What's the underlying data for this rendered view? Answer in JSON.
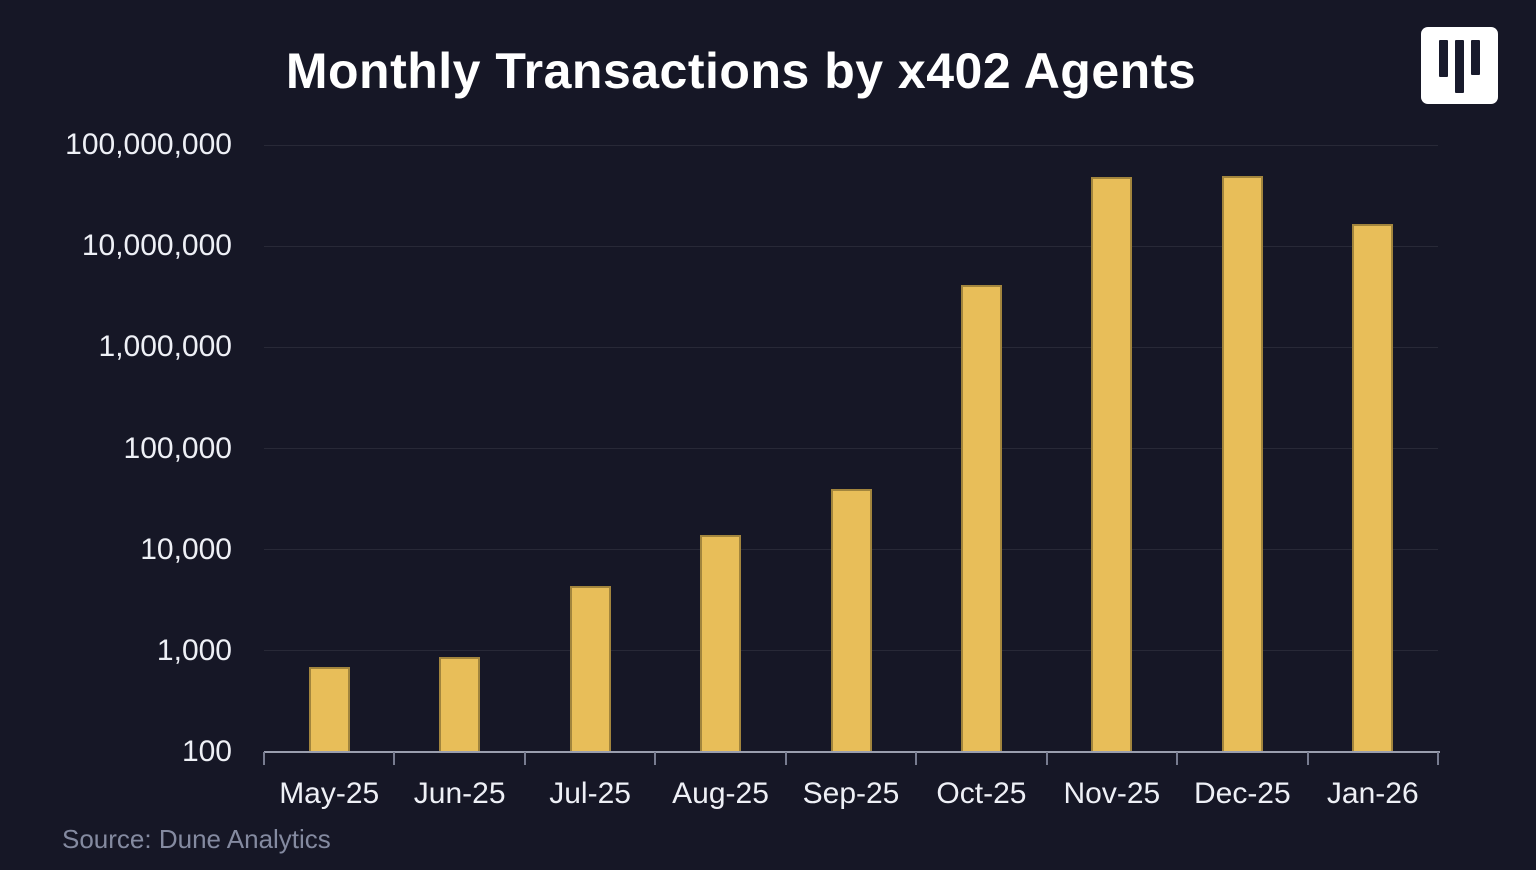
{
  "title": "Monthly Transactions by x402 Agents",
  "source": "Source: Dune Analytics",
  "logo_icon": "three-vertical-bars-logo",
  "colors": {
    "background": "#161726",
    "bar": "#e8be59",
    "title_text": "#ffffff",
    "axis_text": "#eef0f6",
    "source_text": "#848aa0",
    "axis_line": "#9a9eae",
    "gridline": "rgba(255,255,255,0.08)",
    "logo_background": "#ffffff",
    "logo_bars": "#181a2c"
  },
  "chart_data": {
    "type": "bar",
    "title": "Monthly Transactions by x402 Agents",
    "xlabel": "",
    "ylabel": "",
    "y_scale": "log",
    "ylim": [
      100,
      100000000
    ],
    "grid": true,
    "legend": false,
    "categories": [
      "May-25",
      "Jun-25",
      "Jul-25",
      "Aug-25",
      "Sep-25",
      "Oct-25",
      "Nov-25",
      "Dec-25",
      "Jan-26"
    ],
    "values": [
      700,
      870,
      4400,
      14000,
      40000,
      4100000,
      48000000,
      49000000,
      16500000
    ],
    "y_ticks": [
      100,
      1000,
      10000,
      100000,
      1000000,
      10000000,
      100000000
    ],
    "y_tick_labels": [
      "100",
      "1,000",
      "10,000",
      "100,000",
      "1,000,000",
      "10,000,000",
      "100,000,000"
    ],
    "bar_color": "#e8be59"
  }
}
